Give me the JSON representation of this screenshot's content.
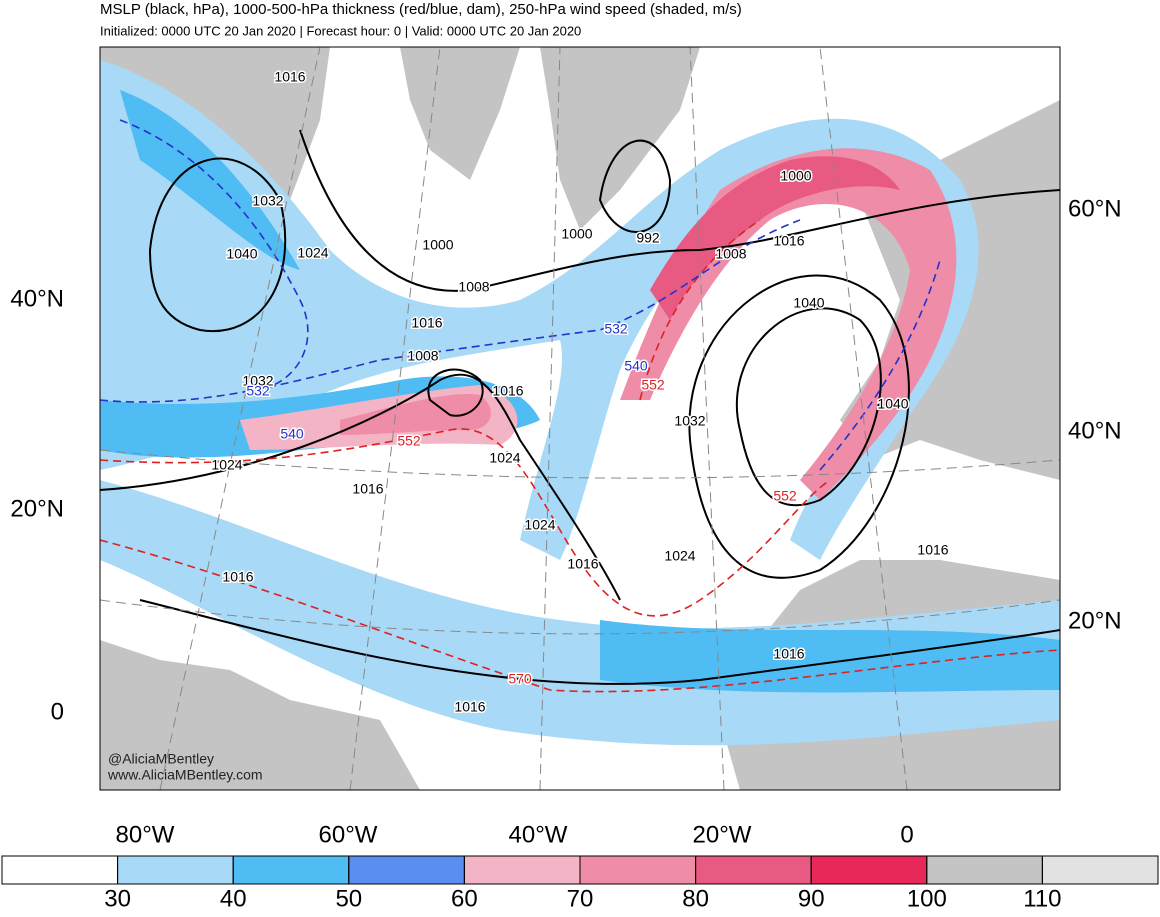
{
  "header": {
    "title": "MSLP (black, hPa), 1000-500-hPa thickness (red/blue, dam), 250-hPa wind speed (shaded, m/s)",
    "subtitle": "Initialized: 0000 UTC 20 Jan 2020 | Forecast hour: 0 | Valid: 0000 UTC 20 Jan 2020"
  },
  "map": {
    "lat_labels_left": [
      "40°N",
      "20°N",
      "0"
    ],
    "lat_labels_right": [
      "60°N",
      "40°N",
      "20°N"
    ],
    "lon_labels": [
      "80°W",
      "60°W",
      "40°W",
      "20°W",
      "0"
    ],
    "contour_labels": [
      {
        "text": "1016",
        "color": "#000000"
      },
      {
        "text": "1032",
        "color": "#000000"
      },
      {
        "text": "1040",
        "color": "#000000"
      },
      {
        "text": "1024",
        "color": "#000000"
      },
      {
        "text": "1000",
        "color": "#000000"
      },
      {
        "text": "1008",
        "color": "#000000"
      },
      {
        "text": "1016",
        "color": "#000000"
      },
      {
        "text": "1008",
        "color": "#000000"
      },
      {
        "text": "1032",
        "color": "#000000"
      },
      {
        "text": "532",
        "color": "#2233cc"
      },
      {
        "text": "540",
        "color": "#2233cc"
      },
      {
        "text": "1024",
        "color": "#000000"
      },
      {
        "text": "552",
        "color": "#dd2222"
      },
      {
        "text": "1016",
        "color": "#000000"
      },
      {
        "text": "1016",
        "color": "#000000"
      },
      {
        "text": "1024",
        "color": "#000000"
      },
      {
        "text": "1024",
        "color": "#000000"
      },
      {
        "text": "1016",
        "color": "#000000"
      },
      {
        "text": "1016",
        "color": "#000000"
      },
      {
        "text": "570",
        "color": "#dd2222"
      },
      {
        "text": "1016",
        "color": "#000000"
      },
      {
        "text": "1000",
        "color": "#000000"
      },
      {
        "text": "992",
        "color": "#000000"
      },
      {
        "text": "1008",
        "color": "#000000"
      },
      {
        "text": "1000",
        "color": "#000000"
      },
      {
        "text": "1016",
        "color": "#000000"
      },
      {
        "text": "1040",
        "color": "#000000"
      },
      {
        "text": "532",
        "color": "#2233cc"
      },
      {
        "text": "540",
        "color": "#2233cc"
      },
      {
        "text": "552",
        "color": "#dd2222"
      },
      {
        "text": "1032",
        "color": "#000000"
      },
      {
        "text": "1024",
        "color": "#000000"
      },
      {
        "text": "1040",
        "color": "#000000"
      },
      {
        "text": "552",
        "color": "#dd2222"
      },
      {
        "text": "1016",
        "color": "#000000"
      },
      {
        "text": "1016",
        "color": "#000000"
      }
    ],
    "credits": [
      "@AliciaMBentley",
      "www.AliciaMBentley.com"
    ]
  },
  "colorbar": {
    "colors": [
      "#ffffff",
      "#a8d9f6",
      "#4fbcf3",
      "#5a8ef0",
      "#f3b4c6",
      "#ef8ca8",
      "#e85a82",
      "#e82858",
      "#c4c4c4",
      "#e2e2e2"
    ],
    "ticks": [
      30,
      40,
      50,
      60,
      70,
      80,
      90,
      100,
      110
    ]
  }
}
